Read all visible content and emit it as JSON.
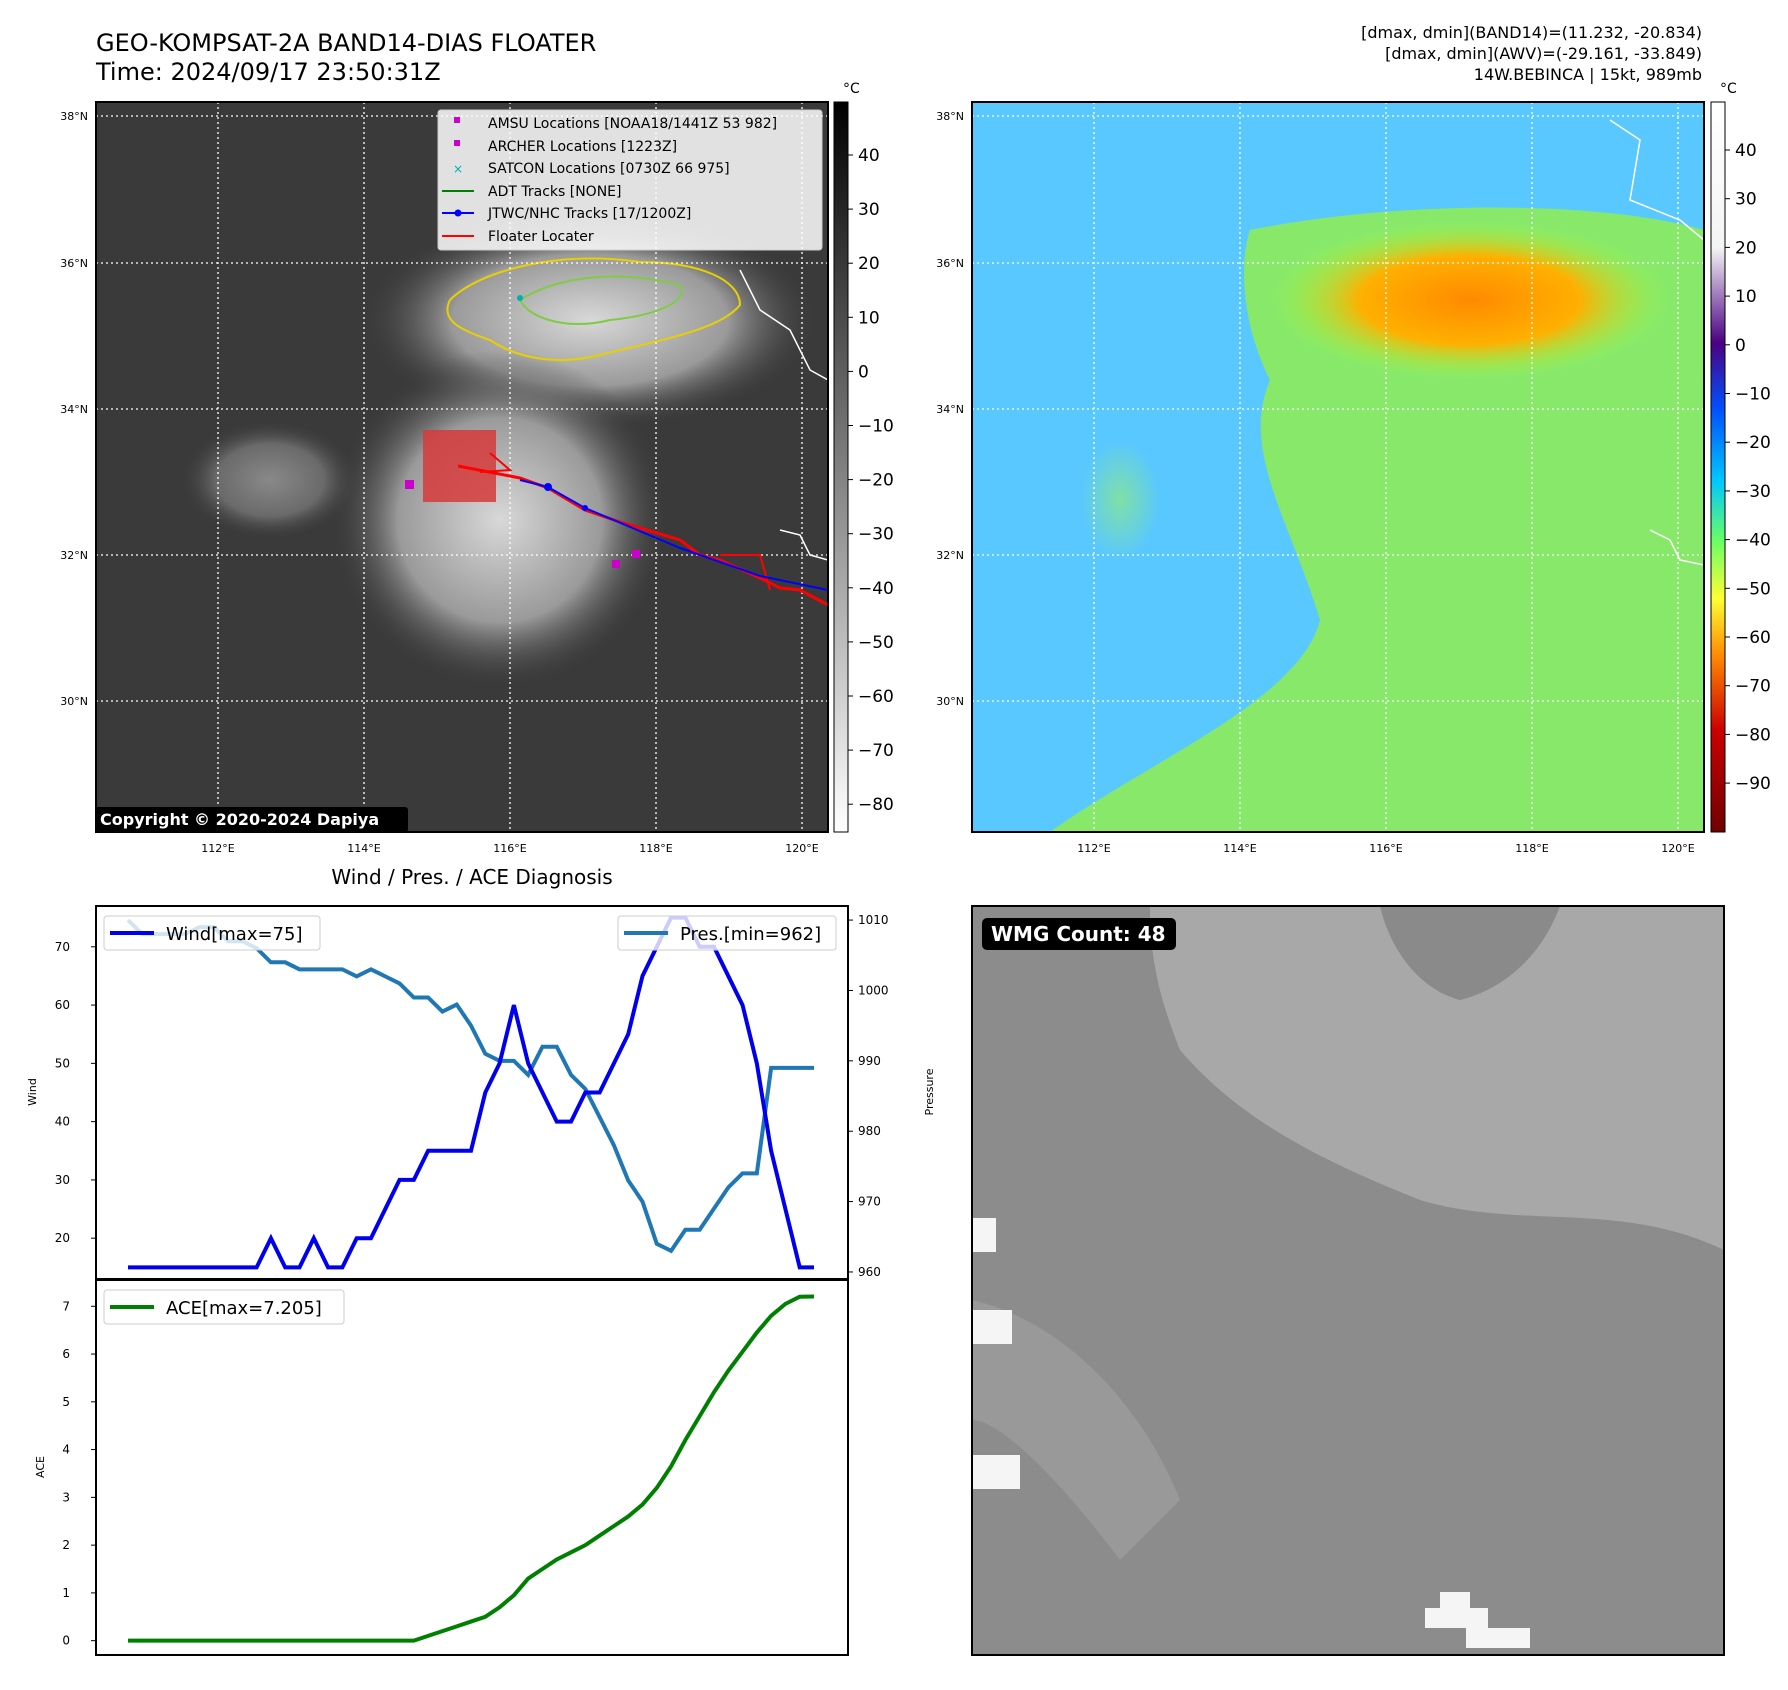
{
  "header": {
    "title_line1": "GEO-KOMPSAT-2A BAND14-DIAS FLOATER",
    "title_line2": "Time: 2024/09/17 23:50:31Z",
    "info_line1": "[dmax, dmin](BAND14)=(11.232, -20.834)",
    "info_line2": "[dmax, dmin](AWV)=(-29.161, -33.849)",
    "info_line3": "14W.BEBINCA | 15kt, 989mb"
  },
  "map": {
    "lat_labels": [
      "38°N",
      "36°N",
      "34°N",
      "32°N",
      "30°N"
    ],
    "lon_labels": [
      "112°E",
      "114°E",
      "116°E",
      "118°E",
      "120°E"
    ],
    "copyright": "Copyright © 2020-2024 Dapiya",
    "legend": [
      {
        "label": "AMSU Locations [NOAA18/1441Z 53 982]",
        "color": "#cc00cc"
      },
      {
        "label": "ARCHER Locations [1223Z]",
        "color": "#cc00cc"
      },
      {
        "label": "SATCON Locations [0730Z 66 975]",
        "color": "#00b0b0"
      },
      {
        "label": "ADT Tracks [NONE]",
        "color": "#008000"
      },
      {
        "label": "JTWC/NHC Tracks [17/1200Z]",
        "color": "#0000ff"
      },
      {
        "label": "Floater Locater",
        "color": "#ff0000"
      }
    ]
  },
  "colorbar_left": {
    "unit": "°C",
    "ticks": [
      "40",
      "30",
      "20",
      "10",
      "0",
      "−10",
      "−20",
      "−30",
      "−40",
      "−50",
      "−60",
      "−70",
      "−80"
    ]
  },
  "colorbar_right": {
    "unit": "°C",
    "ticks": [
      "40",
      "30",
      "20",
      "10",
      "0",
      "−10",
      "−20",
      "−30",
      "−40",
      "−50",
      "−60",
      "−70",
      "−80",
      "−90"
    ]
  },
  "wmg": {
    "label": "WMG Count: 48"
  },
  "colors": {
    "wind": "#0000ee",
    "pressure": "#1f77b4",
    "ace": "#008000",
    "track_red": "#ff0000",
    "track_blue": "#0000ff"
  },
  "chart_data": [
    {
      "type": "line",
      "title": "Wind / Pres. / ACE Diagnosis",
      "xlabel": "",
      "ylabel": "Wind",
      "y2label": "Pressure",
      "ylim": [
        13,
        77
      ],
      "y2lim": [
        959,
        1012
      ],
      "yticks": [
        20,
        30,
        40,
        50,
        60,
        70
      ],
      "y2ticks": [
        960,
        970,
        980,
        990,
        1000,
        1010
      ],
      "series": [
        {
          "name": "Wind[max=75]",
          "axis": "left",
          "color": "#0000ee",
          "values": [
            15,
            15,
            15,
            15,
            15,
            15,
            15,
            15,
            15,
            15,
            20,
            15,
            15,
            20,
            15,
            15,
            20,
            20,
            25,
            30,
            30,
            35,
            35,
            35,
            35,
            45,
            50,
            60,
            50,
            45,
            40,
            40,
            45,
            45,
            50,
            55,
            65,
            70,
            75,
            75,
            70,
            70,
            65,
            60,
            50,
            35,
            25,
            15,
            15
          ]
        },
        {
          "name": "Pres.[min=962]",
          "axis": "right",
          "color": "#1f77b4",
          "values": [
            1010,
            1008,
            1008,
            1008,
            1008,
            1009,
            1009,
            1007,
            1007,
            1006,
            1004,
            1004,
            1003,
            1003,
            1003,
            1003,
            1002,
            1003,
            1002,
            1001,
            999,
            999,
            997,
            998,
            995,
            991,
            990,
            990,
            988,
            992,
            992,
            988,
            986,
            982,
            978,
            973,
            970,
            964,
            963,
            966,
            966,
            969,
            972,
            974,
            974,
            989,
            989,
            989,
            989
          ]
        }
      ]
    },
    {
      "type": "line",
      "ylabel": "ACE",
      "ylim": [
        -0.3,
        7.55
      ],
      "yticks": [
        0,
        1,
        2,
        3,
        4,
        5,
        6,
        7
      ],
      "series": [
        {
          "name": "ACE[max=7.205]",
          "color": "#008000",
          "values": [
            0,
            0,
            0,
            0,
            0,
            0,
            0,
            0,
            0,
            0,
            0,
            0,
            0,
            0,
            0,
            0,
            0,
            0,
            0,
            0,
            0,
            0.1,
            0.2,
            0.3,
            0.4,
            0.5,
            0.7,
            0.95,
            1.3,
            1.5,
            1.7,
            1.85,
            2.0,
            2.2,
            2.4,
            2.6,
            2.85,
            3.2,
            3.65,
            4.2,
            4.7,
            5.2,
            5.65,
            6.05,
            6.45,
            6.8,
            7.05,
            7.2,
            7.205
          ]
        }
      ]
    }
  ]
}
